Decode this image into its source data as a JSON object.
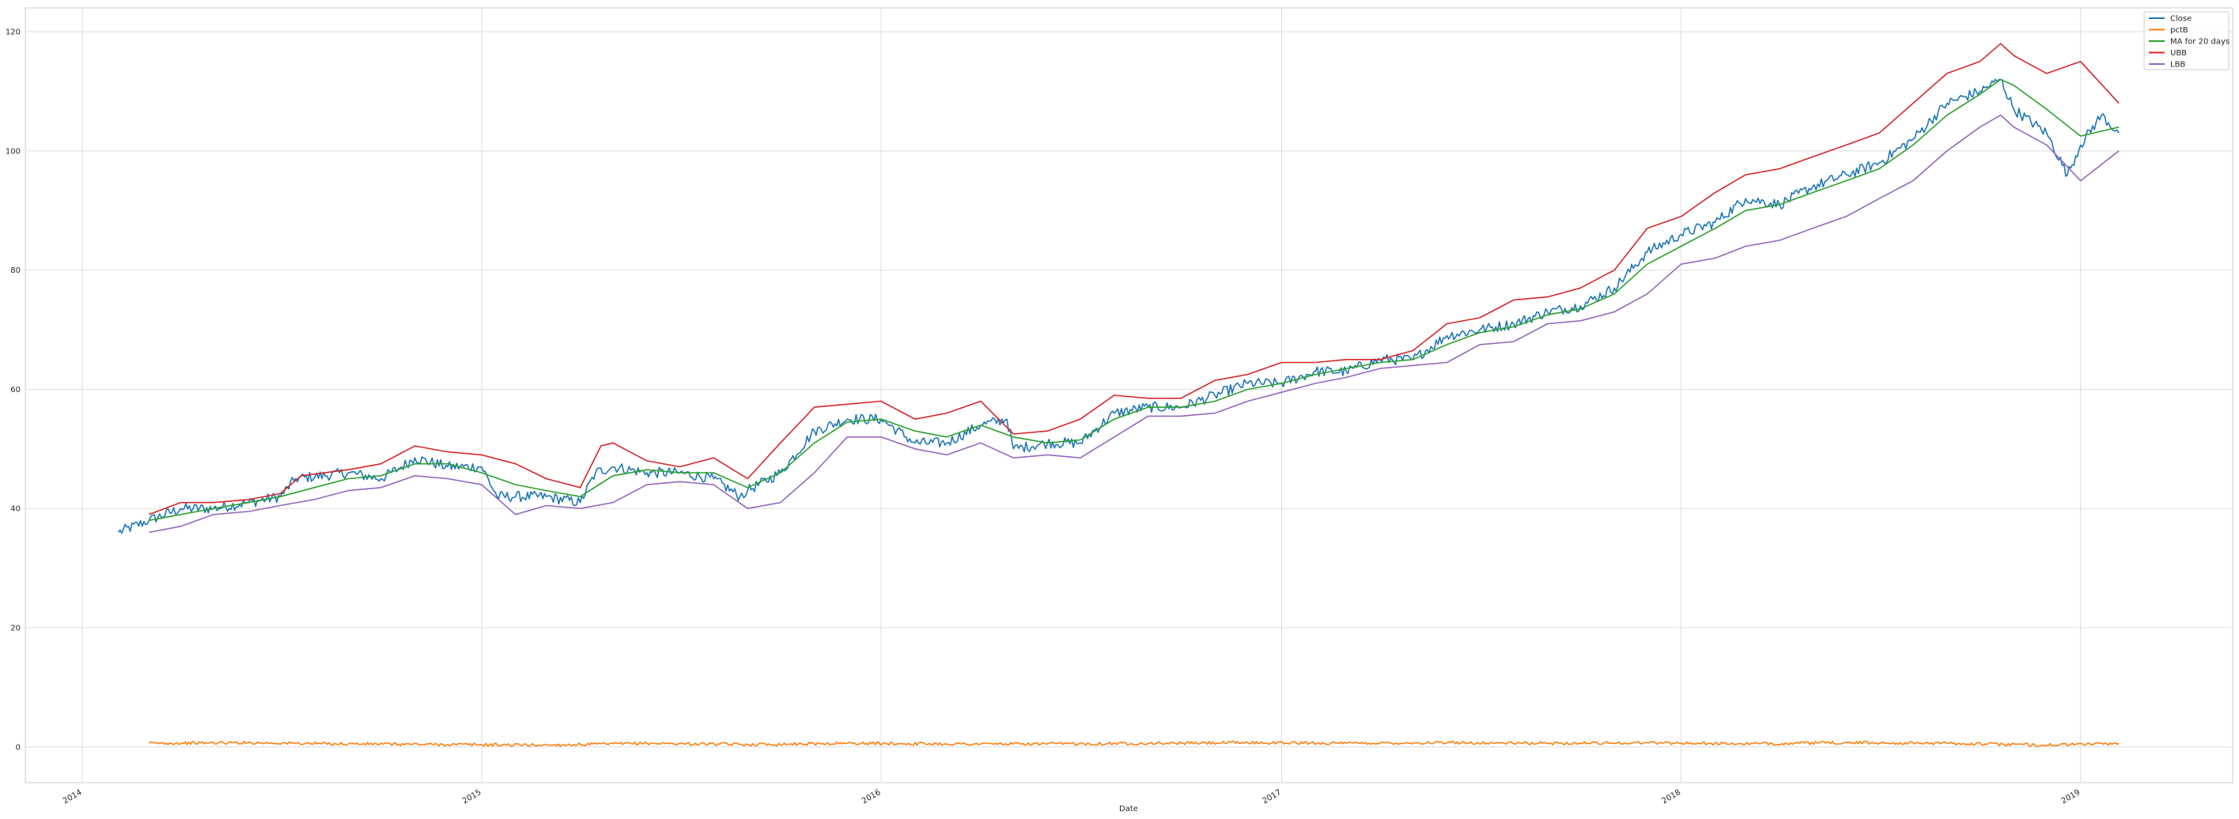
{
  "chart_data": {
    "type": "line",
    "title": "",
    "xlabel": "Date",
    "ylabel": "",
    "x_range": [
      "2013-11-10",
      "2019-05-20"
    ],
    "ylim": [
      -6,
      124
    ],
    "yticks": [
      0,
      20,
      40,
      60,
      80,
      100,
      120
    ],
    "xticks": [
      {
        "date": "2014-01-01",
        "label": "2014"
      },
      {
        "date": "2015-01-01",
        "label": "2015"
      },
      {
        "date": "2016-01-01",
        "label": "2016"
      },
      {
        "date": "2017-01-01",
        "label": "2017"
      },
      {
        "date": "2018-01-01",
        "label": "2018"
      },
      {
        "date": "2019-01-01",
        "label": "2019"
      }
    ],
    "grid": true,
    "legend_position": "upper-right",
    "series": [
      {
        "name": "Close",
        "color": "#1f77b4",
        "noise": 0.9,
        "points": [
          [
            "2014-02-03",
            36
          ],
          [
            "2014-03-03",
            38
          ],
          [
            "2014-04-01",
            40
          ],
          [
            "2014-05-01",
            40
          ],
          [
            "2014-06-02",
            41
          ],
          [
            "2014-07-01",
            42
          ],
          [
            "2014-07-15",
            45
          ],
          [
            "2014-09-01",
            46
          ],
          [
            "2014-10-01",
            45
          ],
          [
            "2014-10-20",
            47
          ],
          [
            "2014-11-01",
            48.5
          ],
          [
            "2014-12-01",
            47
          ],
          [
            "2015-01-01",
            47
          ],
          [
            "2015-01-15",
            42
          ],
          [
            "2015-02-01",
            42
          ],
          [
            "2015-03-01",
            42
          ],
          [
            "2015-04-01",
            41
          ],
          [
            "2015-04-15",
            46
          ],
          [
            "2015-05-01",
            47
          ],
          [
            "2015-06-01",
            46
          ],
          [
            "2015-07-01",
            46
          ],
          [
            "2015-08-01",
            45
          ],
          [
            "2015-08-25",
            42
          ],
          [
            "2015-09-01",
            43
          ],
          [
            "2015-10-01",
            46
          ],
          [
            "2015-11-01",
            53
          ],
          [
            "2015-12-01",
            55
          ],
          [
            "2016-01-01",
            55
          ],
          [
            "2016-02-01",
            51
          ],
          [
            "2016-03-01",
            51
          ],
          [
            "2016-04-01",
            54
          ],
          [
            "2016-04-25",
            55
          ],
          [
            "2016-05-01",
            50
          ],
          [
            "2016-06-01",
            51
          ],
          [
            "2016-07-01",
            51
          ],
          [
            "2016-08-01",
            56
          ],
          [
            "2016-09-01",
            57
          ],
          [
            "2016-10-01",
            57
          ],
          [
            "2016-11-01",
            59
          ],
          [
            "2016-12-01",
            61
          ],
          [
            "2017-01-01",
            61
          ],
          [
            "2017-02-01",
            63
          ],
          [
            "2017-03-01",
            63
          ],
          [
            "2017-04-01",
            65
          ],
          [
            "2017-05-01",
            65
          ],
          [
            "2017-06-01",
            69
          ],
          [
            "2017-07-01",
            70
          ],
          [
            "2017-08-01",
            71
          ],
          [
            "2017-09-01",
            73
          ],
          [
            "2017-10-01",
            74
          ],
          [
            "2017-11-01",
            77
          ],
          [
            "2017-12-01",
            83
          ],
          [
            "2018-01-01",
            86
          ],
          [
            "2018-02-01",
            88
          ],
          [
            "2018-03-01",
            92
          ],
          [
            "2018-04-01",
            91
          ],
          [
            "2018-05-01",
            94
          ],
          [
            "2018-06-01",
            96
          ],
          [
            "2018-07-01",
            98
          ],
          [
            "2018-08-01",
            102
          ],
          [
            "2018-09-01",
            108
          ],
          [
            "2018-10-01",
            110
          ],
          [
            "2018-10-20",
            112
          ],
          [
            "2018-11-01",
            107
          ],
          [
            "2018-12-01",
            103
          ],
          [
            "2018-12-20",
            96
          ],
          [
            "2019-01-01",
            101
          ],
          [
            "2019-01-20",
            106
          ],
          [
            "2019-02-05",
            103
          ]
        ]
      },
      {
        "name": "pctB",
        "color": "#ff7f0e",
        "noise": 0.25,
        "points": [
          [
            "2014-03-03",
            0.6
          ],
          [
            "2014-06-01",
            0.7
          ],
          [
            "2014-09-01",
            0.5
          ],
          [
            "2014-12-01",
            0.4
          ],
          [
            "2015-03-01",
            0.3
          ],
          [
            "2015-06-01",
            0.6
          ],
          [
            "2015-09-01",
            0.4
          ],
          [
            "2015-12-01",
            0.6
          ],
          [
            "2016-03-01",
            0.5
          ],
          [
            "2016-06-01",
            0.5
          ],
          [
            "2016-09-01",
            0.6
          ],
          [
            "2016-12-01",
            0.7
          ],
          [
            "2017-03-01",
            0.6
          ],
          [
            "2017-06-01",
            0.7
          ],
          [
            "2017-09-01",
            0.6
          ],
          [
            "2017-12-01",
            0.7
          ],
          [
            "2018-03-01",
            0.5
          ],
          [
            "2018-06-01",
            0.7
          ],
          [
            "2018-09-01",
            0.6
          ],
          [
            "2018-12-01",
            0.3
          ],
          [
            "2019-02-05",
            0.6
          ]
        ]
      },
      {
        "name": "MA for 20 days",
        "color": "#2ca02c",
        "noise": 0,
        "points": [
          [
            "2014-03-03",
            38
          ],
          [
            "2014-04-01",
            39
          ],
          [
            "2014-05-01",
            40
          ],
          [
            "2014-06-02",
            41
          ],
          [
            "2014-07-01",
            42
          ],
          [
            "2014-08-01",
            43.5
          ],
          [
            "2014-09-01",
            45
          ],
          [
            "2014-10-01",
            45.5
          ],
          [
            "2014-11-01",
            47.5
          ],
          [
            "2014-12-01",
            47.5
          ],
          [
            "2015-01-01",
            46
          ],
          [
            "2015-02-01",
            44
          ],
          [
            "2015-03-01",
            43
          ],
          [
            "2015-04-01",
            42
          ],
          [
            "2015-05-01",
            45.5
          ],
          [
            "2015-06-01",
            46.5
          ],
          [
            "2015-07-01",
            46
          ],
          [
            "2015-08-01",
            46
          ],
          [
            "2015-09-01",
            43.5
          ],
          [
            "2015-10-01",
            46
          ],
          [
            "2015-11-01",
            51
          ],
          [
            "2015-12-01",
            54.5
          ],
          [
            "2016-01-01",
            55
          ],
          [
            "2016-02-01",
            53
          ],
          [
            "2016-03-01",
            52
          ],
          [
            "2016-04-01",
            54
          ],
          [
            "2016-05-01",
            52
          ],
          [
            "2016-06-01",
            51
          ],
          [
            "2016-07-01",
            51.5
          ],
          [
            "2016-08-01",
            55
          ],
          [
            "2016-09-01",
            57
          ],
          [
            "2016-10-01",
            57
          ],
          [
            "2016-11-01",
            58
          ],
          [
            "2016-12-01",
            60
          ],
          [
            "2017-01-01",
            61
          ],
          [
            "2017-02-01",
            62.5
          ],
          [
            "2017-03-01",
            63.5
          ],
          [
            "2017-04-01",
            64.5
          ],
          [
            "2017-05-01",
            65
          ],
          [
            "2017-06-01",
            67.5
          ],
          [
            "2017-07-01",
            69.5
          ],
          [
            "2017-08-01",
            70.5
          ],
          [
            "2017-09-01",
            72.5
          ],
          [
            "2017-10-01",
            73.5
          ],
          [
            "2017-11-01",
            76
          ],
          [
            "2017-12-01",
            81
          ],
          [
            "2018-01-01",
            84
          ],
          [
            "2018-02-01",
            87
          ],
          [
            "2018-03-01",
            90
          ],
          [
            "2018-04-01",
            91
          ],
          [
            "2018-05-01",
            93
          ],
          [
            "2018-06-01",
            95
          ],
          [
            "2018-07-01",
            97
          ],
          [
            "2018-08-01",
            101
          ],
          [
            "2018-09-01",
            106
          ],
          [
            "2018-10-01",
            109.5
          ],
          [
            "2018-10-20",
            112
          ],
          [
            "2018-11-01",
            111
          ],
          [
            "2018-12-01",
            107
          ],
          [
            "2019-01-01",
            102.5
          ],
          [
            "2019-02-05",
            104
          ]
        ]
      },
      {
        "name": "UBB",
        "color": "#d62728",
        "noise": 0,
        "points": [
          [
            "2014-03-03",
            39
          ],
          [
            "2014-04-01",
            41
          ],
          [
            "2014-05-01",
            41
          ],
          [
            "2014-06-02",
            41.5
          ],
          [
            "2014-07-01",
            42.5
          ],
          [
            "2014-07-20",
            45.5
          ],
          [
            "2014-09-01",
            46.5
          ],
          [
            "2014-10-01",
            47.5
          ],
          [
            "2014-11-01",
            50.5
          ],
          [
            "2014-12-01",
            49.5
          ],
          [
            "2015-01-01",
            49
          ],
          [
            "2015-02-01",
            47.5
          ],
          [
            "2015-03-01",
            45
          ],
          [
            "2015-04-01",
            43.5
          ],
          [
            "2015-04-20",
            50.5
          ],
          [
            "2015-05-01",
            51
          ],
          [
            "2015-06-01",
            48
          ],
          [
            "2015-07-01",
            47
          ],
          [
            "2015-08-01",
            48.5
          ],
          [
            "2015-09-01",
            45
          ],
          [
            "2015-10-01",
            51
          ],
          [
            "2015-11-01",
            57
          ],
          [
            "2015-12-01",
            57.5
          ],
          [
            "2016-01-01",
            58
          ],
          [
            "2016-02-01",
            55
          ],
          [
            "2016-03-01",
            56
          ],
          [
            "2016-04-01",
            58
          ],
          [
            "2016-05-01",
            52.5
          ],
          [
            "2016-06-01",
            53
          ],
          [
            "2016-07-01",
            55
          ],
          [
            "2016-08-01",
            59
          ],
          [
            "2016-09-01",
            58.5
          ],
          [
            "2016-10-01",
            58.5
          ],
          [
            "2016-11-01",
            61.5
          ],
          [
            "2016-12-01",
            62.5
          ],
          [
            "2017-01-01",
            64.5
          ],
          [
            "2017-02-01",
            64.5
          ],
          [
            "2017-03-01",
            65
          ],
          [
            "2017-04-01",
            65
          ],
          [
            "2017-05-01",
            66.5
          ],
          [
            "2017-06-01",
            71
          ],
          [
            "2017-07-01",
            72
          ],
          [
            "2017-08-01",
            75
          ],
          [
            "2017-09-01",
            75.5
          ],
          [
            "2017-10-01",
            77
          ],
          [
            "2017-11-01",
            80
          ],
          [
            "2017-12-01",
            87
          ],
          [
            "2018-01-01",
            89
          ],
          [
            "2018-02-01",
            93
          ],
          [
            "2018-03-01",
            96
          ],
          [
            "2018-04-01",
            97
          ],
          [
            "2018-05-01",
            99
          ],
          [
            "2018-06-01",
            101
          ],
          [
            "2018-07-01",
            103
          ],
          [
            "2018-08-01",
            108
          ],
          [
            "2018-09-01",
            113
          ],
          [
            "2018-10-01",
            115
          ],
          [
            "2018-10-20",
            118
          ],
          [
            "2018-11-01",
            116
          ],
          [
            "2018-12-01",
            113
          ],
          [
            "2019-01-01",
            115
          ],
          [
            "2019-02-05",
            108
          ]
        ]
      },
      {
        "name": "LBB",
        "color": "#9467bd",
        "noise": 0,
        "points": [
          [
            "2014-03-03",
            36
          ],
          [
            "2014-04-01",
            37
          ],
          [
            "2014-05-01",
            39
          ],
          [
            "2014-06-02",
            39.5
          ],
          [
            "2014-07-01",
            40.5
          ],
          [
            "2014-08-01",
            41.5
          ],
          [
            "2014-09-01",
            43
          ],
          [
            "2014-10-01",
            43.5
          ],
          [
            "2014-11-01",
            45.5
          ],
          [
            "2014-12-01",
            45
          ],
          [
            "2015-01-01",
            44
          ],
          [
            "2015-02-01",
            39
          ],
          [
            "2015-03-01",
            40.5
          ],
          [
            "2015-04-01",
            40
          ],
          [
            "2015-05-01",
            41
          ],
          [
            "2015-06-01",
            44
          ],
          [
            "2015-07-01",
            44.5
          ],
          [
            "2015-08-01",
            44
          ],
          [
            "2015-09-01",
            40
          ],
          [
            "2015-10-01",
            41
          ],
          [
            "2015-11-01",
            46
          ],
          [
            "2015-12-01",
            52
          ],
          [
            "2016-01-01",
            52
          ],
          [
            "2016-02-01",
            50
          ],
          [
            "2016-03-01",
            49
          ],
          [
            "2016-04-01",
            51
          ],
          [
            "2016-05-01",
            48.5
          ],
          [
            "2016-06-01",
            49
          ],
          [
            "2016-07-01",
            48.5
          ],
          [
            "2016-08-01",
            52
          ],
          [
            "2016-09-01",
            55.5
          ],
          [
            "2016-10-01",
            55.5
          ],
          [
            "2016-11-01",
            56
          ],
          [
            "2016-12-01",
            58
          ],
          [
            "2017-01-01",
            59.5
          ],
          [
            "2017-02-01",
            61
          ],
          [
            "2017-03-01",
            62
          ],
          [
            "2017-04-01",
            63.5
          ],
          [
            "2017-05-01",
            64
          ],
          [
            "2017-06-01",
            64.5
          ],
          [
            "2017-07-01",
            67.5
          ],
          [
            "2017-08-01",
            68
          ],
          [
            "2017-09-01",
            71
          ],
          [
            "2017-10-01",
            71.5
          ],
          [
            "2017-11-01",
            73
          ],
          [
            "2017-12-01",
            76
          ],
          [
            "2018-01-01",
            81
          ],
          [
            "2018-02-01",
            82
          ],
          [
            "2018-03-01",
            84
          ],
          [
            "2018-04-01",
            85
          ],
          [
            "2018-05-01",
            87
          ],
          [
            "2018-06-01",
            89
          ],
          [
            "2018-07-01",
            92
          ],
          [
            "2018-08-01",
            95
          ],
          [
            "2018-09-01",
            100
          ],
          [
            "2018-10-01",
            104
          ],
          [
            "2018-10-20",
            106
          ],
          [
            "2018-11-01",
            104
          ],
          [
            "2018-12-01",
            101
          ],
          [
            "2019-01-01",
            95
          ],
          [
            "2019-02-05",
            100
          ]
        ]
      }
    ]
  }
}
